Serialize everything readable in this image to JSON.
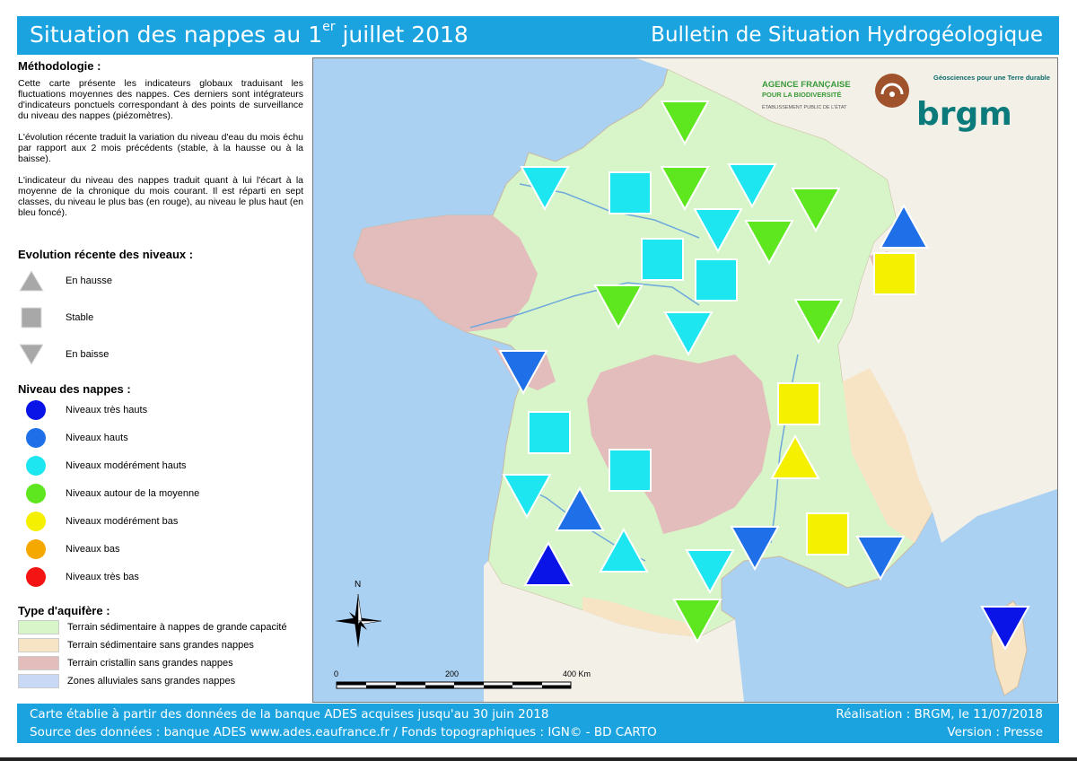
{
  "header": {
    "title_main": "Situation des nappes au 1",
    "title_sup": "er",
    "title_rest": " juillet 2018",
    "title_right": "Bulletin de Situation Hydrogéologique"
  },
  "methodology": {
    "heading": "Méthodologie :",
    "p1": "Cette carte présente les indicateurs globaux traduisant les fluctuations moyennes des nappes. Ces derniers sont intégrateurs d'indicateurs ponctuels correspondant à des points de surveillance du niveau des nappes (piézomètres).",
    "p2": "L'évolution récente traduit la variation du niveau d'eau du mois échu par rapport aux 2 mois précédents (stable, à la hausse ou à la baisse).",
    "p3": "L'indicateur du niveau des nappes traduit quant à lui l'écart à la moyenne de la chronique du mois courant. Il est réparti en sept classes, du niveau le plus bas (en rouge), au niveau le plus haut (en bleu foncé)."
  },
  "evolution": {
    "heading": "Evolution récente des niveaux :",
    "items": [
      "En hausse",
      "Stable",
      "En baisse"
    ]
  },
  "levels": {
    "heading": "Niveau des nappes :",
    "items": [
      {
        "label": "Niveaux très hauts",
        "color": "#0a14e6"
      },
      {
        "label": "Niveaux hauts",
        "color": "#1e6fe8"
      },
      {
        "label": "Niveaux modérément hauts",
        "color": "#1ee6f0"
      },
      {
        "label": "Niveaux autour de la moyenne",
        "color": "#5ee61e"
      },
      {
        "label": "Niveaux modérément bas",
        "color": "#f5f000"
      },
      {
        "label": "Niveaux bas",
        "color": "#f5a800"
      },
      {
        "label": "Niveaux très bas",
        "color": "#f51414"
      }
    ]
  },
  "aquifer": {
    "heading": "Type d'aquifère :",
    "items": [
      {
        "label": "Terrain sédimentaire à nappes de grande capacité",
        "color": "#d7f5c8"
      },
      {
        "label": "Terrain sédimentaire sans grandes nappes",
        "color": "#f7e4c5"
      },
      {
        "label": "Terrain cristallin sans grandes nappes",
        "color": "#e3bcbc"
      },
      {
        "label": "Zones alluviales sans grandes nappes",
        "color": "#c9d9f5"
      }
    ]
  },
  "map": {
    "north_label": "N",
    "scale_labels": [
      "0",
      "200",
      "400 Km"
    ],
    "logo_afb": [
      "AGENCE FRANÇAISE",
      "POUR LA BIODIVERSITÉ",
      "ÉTABLISSEMENT PUBLIC DE L'ÉTAT"
    ],
    "logo_brgm_tag": "Géosciences pour une Terre durable",
    "logo_brgm": "brgm",
    "indicators": [
      {
        "evolution": "baisse",
        "level": "moyenne"
      },
      {
        "evolution": "baisse",
        "level": "moderement_hauts"
      },
      {
        "evolution": "stable",
        "level": "moderement_hauts"
      },
      {
        "evolution": "baisse",
        "level": "moyenne"
      },
      {
        "evolution": "baisse",
        "level": "moderement_hauts"
      },
      {
        "evolution": "baisse",
        "level": "moyenne"
      },
      {
        "evolution": "baisse",
        "level": "moderement_hauts"
      },
      {
        "evolution": "baisse",
        "level": "moyenne"
      },
      {
        "evolution": "hausse",
        "level": "hauts"
      },
      {
        "evolution": "stable",
        "level": "moderement_hauts"
      },
      {
        "evolution": "stable",
        "level": "moderement_hauts"
      },
      {
        "evolution": "stable",
        "level": "moderement_bas"
      },
      {
        "evolution": "baisse",
        "level": "moyenne"
      },
      {
        "evolution": "baisse",
        "level": "moderement_hauts"
      },
      {
        "evolution": "baisse",
        "level": "moyenne"
      },
      {
        "evolution": "baisse",
        "level": "hauts"
      },
      {
        "evolution": "stable",
        "level": "moderement_bas"
      },
      {
        "evolution": "stable",
        "level": "moderement_hauts"
      },
      {
        "evolution": "hausse",
        "level": "moderement_bas"
      },
      {
        "evolution": "stable",
        "level": "moderement_hauts"
      },
      {
        "evolution": "baisse",
        "level": "moderement_hauts"
      },
      {
        "evolution": "hausse",
        "level": "hauts"
      },
      {
        "evolution": "stable",
        "level": "moderement_bas"
      },
      {
        "evolution": "baisse",
        "level": "hauts"
      },
      {
        "evolution": "hausse",
        "level": "tres_hauts"
      },
      {
        "evolution": "hausse",
        "level": "moderement_hauts"
      },
      {
        "evolution": "baisse",
        "level": "moderement_hauts"
      },
      {
        "evolution": "baisse",
        "level": "hauts"
      },
      {
        "evolution": "baisse",
        "level": "moyenne"
      },
      {
        "evolution": "baisse",
        "level": "tres_hauts"
      }
    ]
  },
  "footer": {
    "line1": "Carte établie à partir des données de la banque ADES acquises jusqu'au 30 juin 2018",
    "line2": "Source des données : banque ADES www.ades.eaufrance.fr / Fonds topographiques : IGN© - BD CARTO",
    "credit": "Réalisation : BRGM, le 11/07/2018",
    "version": "Version : Presse"
  }
}
